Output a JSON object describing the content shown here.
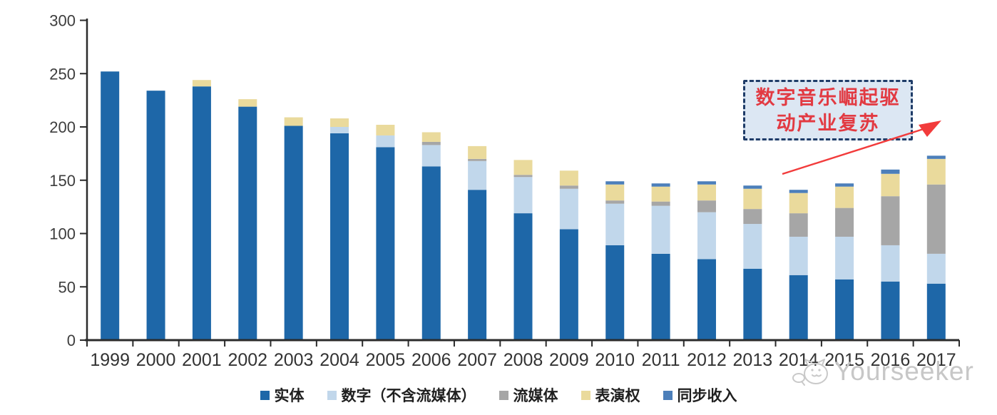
{
  "chart_data": {
    "type": "bar",
    "stacked": true,
    "title": "",
    "xlabel": "",
    "ylabel": "",
    "categories": [
      "1999",
      "2000",
      "2001",
      "2002",
      "2003",
      "2004",
      "2005",
      "2006",
      "2007",
      "2008",
      "2009",
      "2010",
      "2011",
      "2012",
      "2013",
      "2014",
      "2015",
      "2016",
      "2017"
    ],
    "series": [
      {
        "name": "实体",
        "color": "#1E67A8",
        "values": [
          252,
          234,
          238,
          219,
          201,
          194,
          181,
          163,
          141,
          119,
          104,
          89,
          81,
          76,
          67,
          61,
          57,
          55,
          53
        ]
      },
      {
        "name": "数字（不含流媒体）",
        "color": "#C1D7EB",
        "values": [
          0,
          0,
          0,
          0,
          0,
          6,
          11,
          20,
          27,
          34,
          38,
          39,
          45,
          44,
          42,
          36,
          40,
          34,
          28
        ]
      },
      {
        "name": "流媒体",
        "color": "#A6A6A6",
        "values": [
          0,
          0,
          0,
          0,
          0,
          0,
          0,
          3,
          2,
          2,
          3,
          3,
          4,
          11,
          14,
          22,
          27,
          46,
          65
        ]
      },
      {
        "name": "表演权",
        "color": "#EADA9C",
        "values": [
          0,
          0,
          6,
          7,
          8,
          8,
          10,
          9,
          12,
          14,
          14,
          15,
          14,
          15,
          19,
          19,
          20,
          21,
          24
        ]
      },
      {
        "name": "同步收入",
        "color": "#4C7FBA",
        "values": [
          0,
          0,
          0,
          0,
          0,
          0,
          0,
          0,
          0,
          0,
          0,
          3,
          3,
          3,
          3,
          3,
          3,
          4,
          3
        ]
      }
    ],
    "ylim": [
      0,
      300
    ],
    "yticks": [
      0,
      50,
      100,
      150,
      200,
      250,
      300
    ],
    "grid": false,
    "legend_position": "bottom"
  },
  "annotation": {
    "line1": "数字音乐崛起驱",
    "line2": "动产业复苏",
    "box_fill": "#DCE7F3",
    "border_color": "#1F3C68",
    "text_color": "#E23A42",
    "arrow_color": "#F23B3B"
  },
  "watermark": {
    "text": "Yourseeker",
    "color": "#C7C7C7"
  }
}
